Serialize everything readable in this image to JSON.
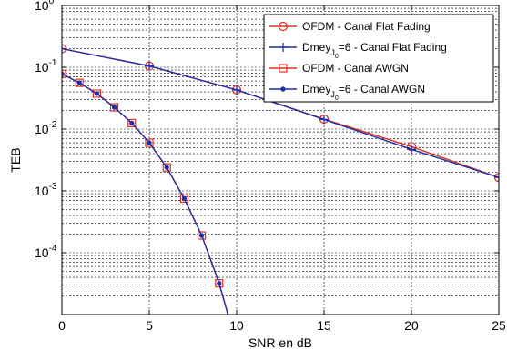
{
  "chart_data": {
    "type": "line",
    "xlabel": "SNR en dB",
    "ylabel": "TEB",
    "xlim": [
      0,
      25
    ],
    "ylim": [
      1e-05,
      1
    ],
    "yscale": "log",
    "grid": true,
    "legend_position": "top-right",
    "x_ticks": [
      "0",
      "5",
      "10",
      "15",
      "20",
      "25"
    ],
    "y_ticks": [
      {
        "base": "10",
        "exp": "0",
        "value": 1
      },
      {
        "base": "10",
        "exp": "-1",
        "value": 0.1
      },
      {
        "base": "10",
        "exp": "-2",
        "value": 0.01
      },
      {
        "base": "10",
        "exp": "-3",
        "value": 0.001
      },
      {
        "base": "10",
        "exp": "-4",
        "value": 0.0001
      }
    ],
    "series": [
      {
        "name": "OFDM - Canal Flat Fading",
        "label_parts": {
          "main": "OFDM - Canal Flat Fading"
        },
        "color": "#e0301e",
        "marker": "circle",
        "x": [
          0,
          5,
          10,
          15,
          20,
          25
        ],
        "y": [
          0.2,
          0.105,
          0.043,
          0.0145,
          0.0052,
          0.00165
        ]
      },
      {
        "name": "Dmey J0=6 - Canal Flat Fading",
        "label_parts": {
          "main": "Dmey",
          "sub1": "J",
          "sub2": "0",
          "tail": "=6 - Canal Flat Fading"
        },
        "color": "#1f2fa8",
        "marker": "plus",
        "x": [
          0,
          5,
          10,
          15,
          20,
          25
        ],
        "y": [
          0.2,
          0.105,
          0.043,
          0.0143,
          0.0047,
          0.00165
        ]
      },
      {
        "name": "OFDM - Canal AWGN",
        "label_parts": {
          "main": "OFDM - Canal AWGN"
        },
        "color": "#e0301e",
        "marker": "square",
        "x": [
          0,
          1,
          2,
          3,
          4,
          5,
          6,
          7,
          8,
          9,
          9.5
        ],
        "y": [
          0.078,
          0.056,
          0.0375,
          0.0225,
          0.0125,
          0.006,
          0.0024,
          0.00075,
          0.00019,
          3.2e-05,
          1e-05
        ]
      },
      {
        "name": "Dmey J0=6 - Canal AWGN",
        "label_parts": {
          "main": "Dmey",
          "sub1": "J",
          "sub2": "0",
          "tail": "=6 - Canal AWGN"
        },
        "color": "#1f2fa8",
        "marker": "dot",
        "x": [
          0,
          1,
          2,
          3,
          4,
          5,
          6,
          7,
          8,
          9,
          9.5
        ],
        "y": [
          0.078,
          0.056,
          0.0375,
          0.0225,
          0.0125,
          0.006,
          0.0024,
          0.00075,
          0.00019,
          3.2e-05,
          1e-05
        ]
      }
    ]
  }
}
